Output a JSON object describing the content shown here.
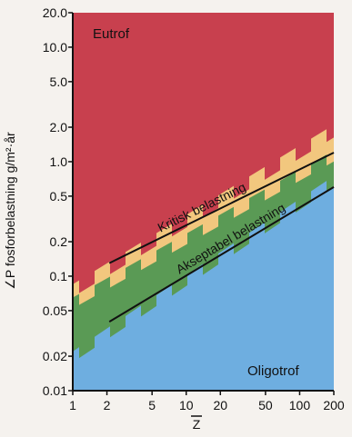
{
  "chart_data": {
    "type": "line",
    "xlabel": "Z",
    "ylabel": "∠P fosforbelastning g/m²·år",
    "x_scale": "log",
    "y_scale": "log",
    "xlim": [
      1,
      200
    ],
    "ylim": [
      0.01,
      20.0
    ],
    "x_ticks": [
      {
        "value": 1,
        "label": "1"
      },
      {
        "value": 2,
        "label": "2"
      },
      {
        "value": 5,
        "label": "5"
      },
      {
        "value": 10,
        "label": "10"
      },
      {
        "value": 20,
        "label": "20"
      },
      {
        "value": 50,
        "label": "50"
      },
      {
        "value": 100,
        "label": "100"
      },
      {
        "value": 200,
        "label": "200"
      }
    ],
    "y_ticks": [
      {
        "value": 0.01,
        "label": "0.01"
      },
      {
        "value": 0.02,
        "label": "0.02"
      },
      {
        "value": 0.05,
        "label": "0.05"
      },
      {
        "value": 0.1,
        "label": "0.1"
      },
      {
        "value": 0.2,
        "label": "0.2"
      },
      {
        "value": 0.5,
        "label": "0.5"
      },
      {
        "value": 1.0,
        "label": "1.0"
      },
      {
        "value": 2.0,
        "label": "2.0"
      },
      {
        "value": 5.0,
        "label": "5.0"
      },
      {
        "value": 10.0,
        "label": "10.0"
      },
      {
        "value": 20.0,
        "label": "20.0"
      }
    ],
    "regions": [
      {
        "label": "Eutrof",
        "color": "#c8404e"
      },
      {
        "label": "",
        "color": "#f2c77e"
      },
      {
        "label": "",
        "color": "#5a9a55"
      },
      {
        "label": "Oligotrof",
        "color": "#6eaee0"
      }
    ],
    "series": [
      {
        "name": "Kritisk belastning",
        "x": [
          2.1,
          200
        ],
        "y": [
          0.13,
          1.2
        ]
      },
      {
        "name": "Akseptabel belastning",
        "x": [
          2.1,
          200
        ],
        "y": [
          0.04,
          0.6
        ]
      }
    ]
  }
}
